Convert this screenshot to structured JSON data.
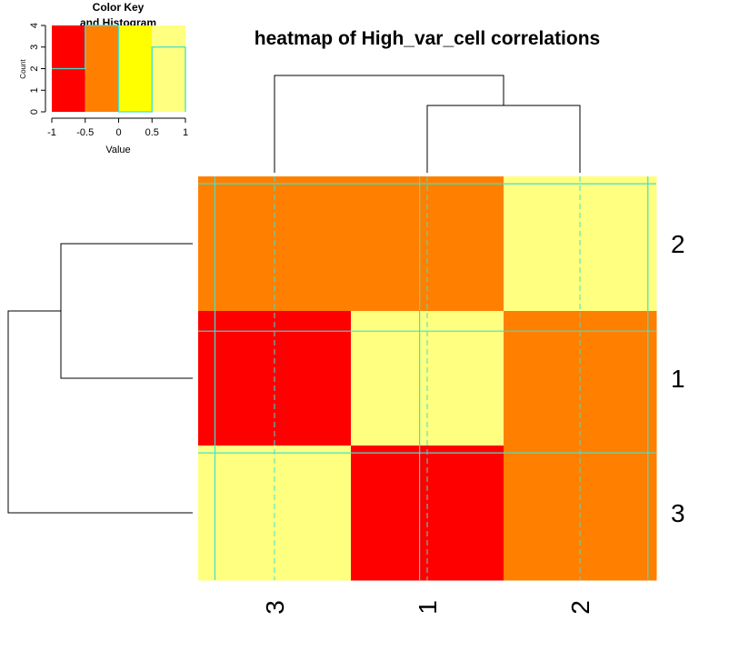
{
  "chart_data": [
    {
      "type": "heatmap",
      "title": "heatmap of High_var_cell correlations",
      "rows": [
        "2",
        "1",
        "3"
      ],
      "columns": [
        "3",
        "1",
        "2"
      ],
      "bins": [
        -1,
        -0.5,
        0,
        0.5,
        1
      ],
      "bin_colors": [
        "#ff0000",
        "#ff8000",
        "#ffff00",
        "#ffff80"
      ],
      "cells": [
        [
          -0.3,
          -0.3,
          0.9
        ],
        [
          -0.7,
          0.9,
          -0.3
        ],
        [
          0.9,
          -0.7,
          -0.3
        ]
      ],
      "trace_color": "#40e0d0",
      "trace_center": 0,
      "trace_halfwidth": 1,
      "col_trace_positions": [
        -0.78,
        -0.1,
        0.89
      ],
      "row_trace_positions": [
        0.89,
        0.7,
        0.89
      ]
    },
    {
      "type": "bar",
      "title": "Color Key and Histogram",
      "title_lines": [
        "Color Key",
        "and Histogram"
      ],
      "xlabel": "Value",
      "ylabel": "Count",
      "x_ticks": [
        -1,
        -0.5,
        0,
        0.5,
        1
      ],
      "x_tick_labels": [
        "-1",
        "-0.5",
        "0",
        "0.5",
        "1"
      ],
      "y_ticks": [
        0,
        1,
        2,
        3,
        4
      ],
      "xlim": [
        -1,
        1
      ],
      "ylim": [
        0,
        4
      ],
      "histogram_counts": [
        2,
        4,
        0,
        3
      ]
    }
  ]
}
